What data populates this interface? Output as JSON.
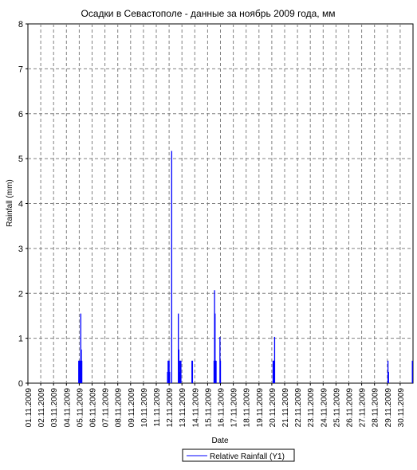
{
  "chart_data": {
    "type": "bar",
    "title": "Осадки в Севастополе - данные за ноябрь 2009 года, мм",
    "xlabel": "Date",
    "ylabel": "Rainfall (mm)",
    "ylim": [
      0,
      8
    ],
    "yticks": [
      "0",
      "1",
      "2",
      "3",
      "4",
      "5",
      "6",
      "7",
      "8"
    ],
    "xlim_days": [
      1,
      31
    ],
    "xtick_labels": [
      "01.11.2009",
      "02.11.2009",
      "03.11.2009",
      "04.11.2009",
      "05.11.2009",
      "06.11.2009",
      "07.11.2009",
      "08.11.2009",
      "09.11.2009",
      "10.11.2009",
      "11.11.2009",
      "12.11.2009",
      "13.11.2009",
      "14.11.2009",
      "15.11.2009",
      "16.11.2009",
      "17.11.2009",
      "18.11.2009",
      "19.11.2009",
      "20.11.2009",
      "21.11.2009",
      "22.11.2009",
      "23.11.2009",
      "24.11.2009",
      "25.11.2009",
      "26.11.2009",
      "27.11.2009",
      "28.11.2009",
      "29.11.2009",
      "30.11.2009"
    ],
    "grid": true,
    "legend_position": "bottom-right",
    "series": [
      {
        "name": "Relative Rainfall (Y1)",
        "color": "#0000ff",
        "points": [
          {
            "x": 4.96,
            "y": 0.5
          },
          {
            "x": 5.0,
            "y": 0.5
          },
          {
            "x": 5.04,
            "y": 0.5
          },
          {
            "x": 5.08,
            "y": 0.5
          },
          {
            "x": 5.12,
            "y": 1.55
          },
          {
            "x": 5.16,
            "y": 0.75
          },
          {
            "x": 5.2,
            "y": 0.5
          },
          {
            "x": 11.88,
            "y": 0.25
          },
          {
            "x": 11.92,
            "y": 0.5
          },
          {
            "x": 11.96,
            "y": 0.5
          },
          {
            "x": 12.0,
            "y": 0.5
          },
          {
            "x": 12.04,
            "y": 0.25
          },
          {
            "x": 12.2,
            "y": 5.17
          },
          {
            "x": 12.72,
            "y": 1.55
          },
          {
            "x": 12.76,
            "y": 0.75
          },
          {
            "x": 12.8,
            "y": 0.5
          },
          {
            "x": 12.84,
            "y": 0.25
          },
          {
            "x": 12.88,
            "y": 0.5
          },
          {
            "x": 12.92,
            "y": 0.5
          },
          {
            "x": 13.78,
            "y": 0.5
          },
          {
            "x": 13.82,
            "y": 0.5
          },
          {
            "x": 15.5,
            "y": 0.5
          },
          {
            "x": 15.54,
            "y": 2.07
          },
          {
            "x": 15.58,
            "y": 1.55
          },
          {
            "x": 15.62,
            "y": 0.5
          },
          {
            "x": 15.66,
            "y": 0.5
          },
          {
            "x": 15.96,
            "y": 1.03
          },
          {
            "x": 16.0,
            "y": 0.5
          },
          {
            "x": 20.1,
            "y": 0.5
          },
          {
            "x": 20.14,
            "y": 0.5
          },
          {
            "x": 20.18,
            "y": 0.5
          },
          {
            "x": 20.22,
            "y": 1.03
          },
          {
            "x": 29.05,
            "y": 0.5
          },
          {
            "x": 29.09,
            "y": 0.25
          },
          {
            "x": 30.95,
            "y": 0.5
          }
        ]
      }
    ]
  }
}
